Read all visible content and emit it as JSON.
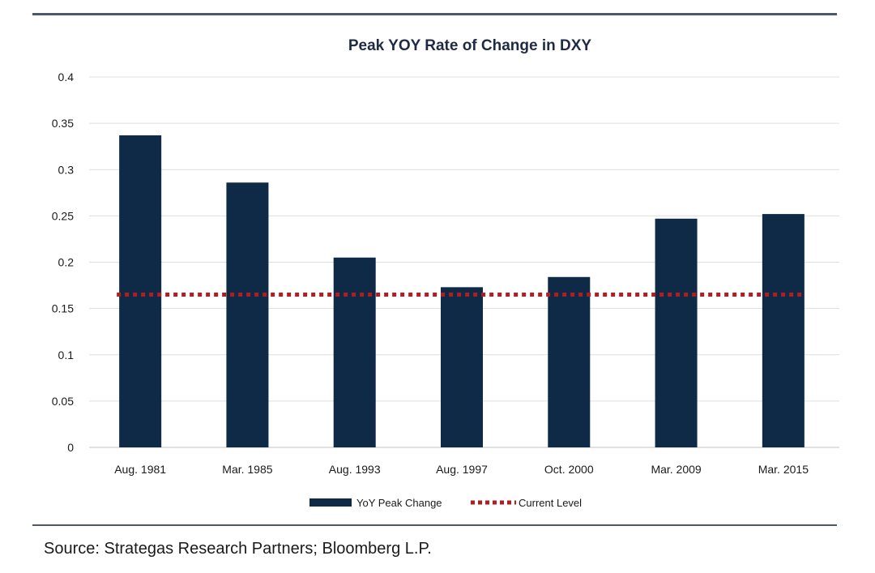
{
  "chart_data": {
    "type": "bar",
    "title": "Peak YOY Rate of Change in DXY",
    "xlabel": "",
    "ylabel": "",
    "categories": [
      "Aug. 1981",
      "Mar. 1985",
      "Aug. 1993",
      "Aug. 1997",
      "Oct. 2000",
      "Mar. 2009",
      "Mar. 2015"
    ],
    "series": [
      {
        "name": "YoY Peak Change",
        "values": [
          0.337,
          0.286,
          0.205,
          0.173,
          0.184,
          0.247,
          0.252
        ],
        "color": "#0f2a47"
      }
    ],
    "reference_line": {
      "name": "Current Level",
      "value": 0.165,
      "color": "#b01e23",
      "style": "dotted"
    },
    "ylim": [
      0,
      0.4
    ],
    "yticks": [
      "0",
      "0.05",
      "0.1",
      "0.15",
      "0.2",
      "0.25",
      "0.3",
      "0.35",
      "0.4"
    ],
    "grid": true,
    "legend_position": "bottom-center"
  },
  "source": "Source:  Strategas Research Partners; Bloomberg L.P."
}
